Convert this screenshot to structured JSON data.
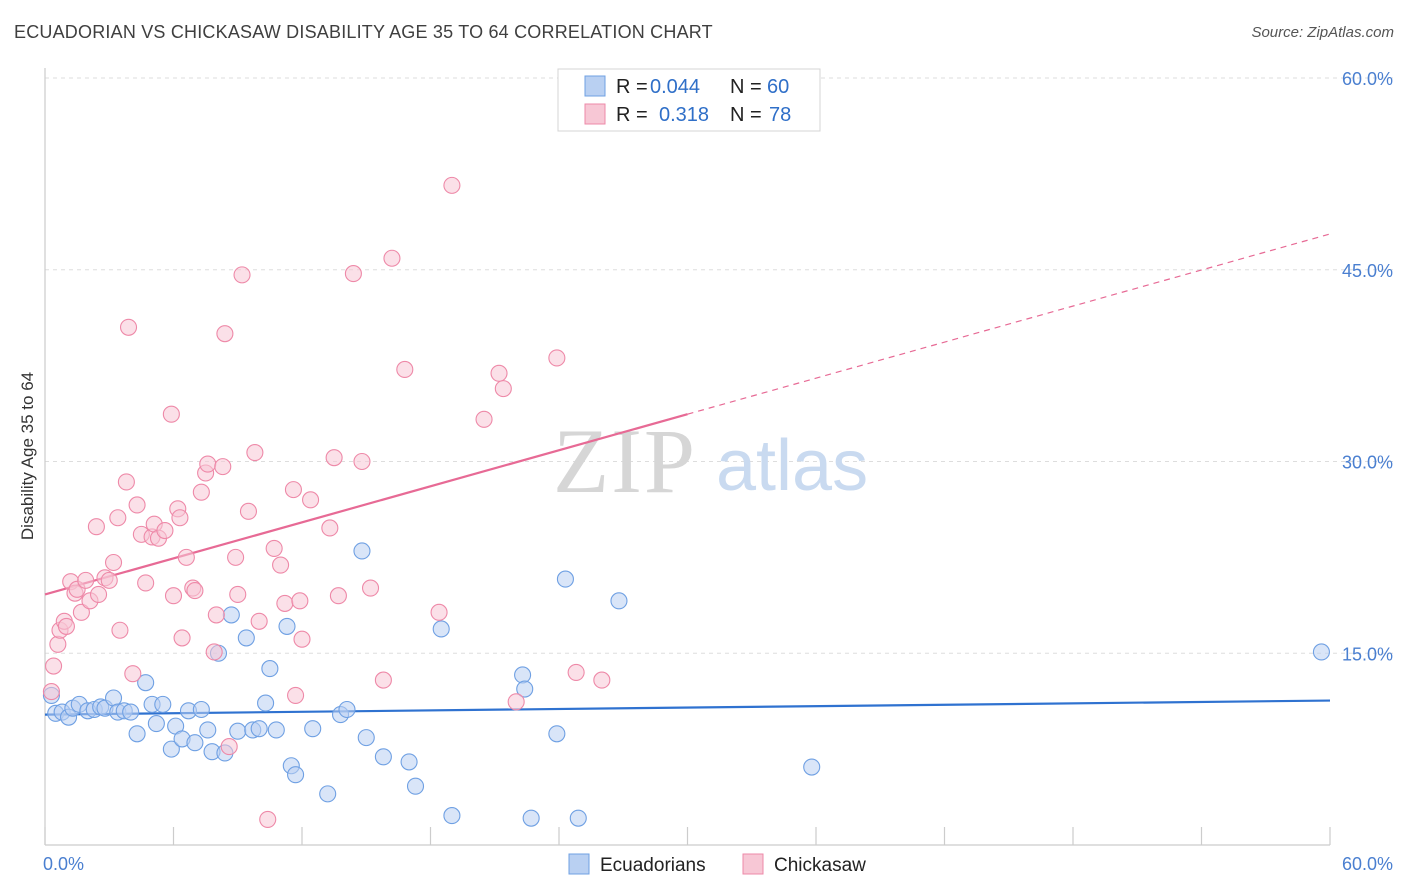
{
  "title": "ECUADORIAN VS CHICKASAW DISABILITY AGE 35 TO 64 CORRELATION CHART",
  "source": "Source: ZipAtlas.com",
  "watermark": {
    "zip": "ZIP",
    "atlas": "atlas"
  },
  "legend": {
    "r_label": "R =",
    "n_label": "N =",
    "rows": [
      {
        "r": "0.044",
        "n": "60"
      },
      {
        "r": "0.318",
        "n": "78"
      }
    ]
  },
  "chart_data": {
    "type": "scatter",
    "title": "ECUADORIAN VS CHICKASAW DISABILITY AGE 35 TO 64 CORRELATION CHART",
    "xlabel": "",
    "ylabel": "Disability Age 35 to 64",
    "xlim": [
      0,
      60
    ],
    "ylim": [
      0,
      60
    ],
    "x_tick_labels": [
      "0.0%",
      "60.0%"
    ],
    "y_ticks": [
      15,
      30,
      45,
      60
    ],
    "y_tick_labels": [
      "15.0%",
      "30.0%",
      "45.0%",
      "60.0%"
    ],
    "grid": true,
    "colors": {
      "ecuadorians": "#6fa0e3",
      "ecuadorians_fill": "#b9d0f2",
      "ecuadorians_line": "#2f72d0",
      "chickasaw": "#ee89a8",
      "chickasaw_fill": "#f7c7d5",
      "chickasaw_line": "#e76a95",
      "tick_text": "#4a7fd0",
      "grid": "#dddddd"
    },
    "series": [
      {
        "name": "Ecuadorians",
        "r": 0.044,
        "n": 60,
        "trend": {
          "x0": 0,
          "y0": 10.2,
          "x1": 60,
          "y1": 11.3,
          "dash_from": null
        },
        "points": [
          [
            0.3,
            11.7
          ],
          [
            0.5,
            10.3
          ],
          [
            0.8,
            10.4
          ],
          [
            1.1,
            10.0
          ],
          [
            1.3,
            10.7
          ],
          [
            1.6,
            11.0
          ],
          [
            2.0,
            10.5
          ],
          [
            2.3,
            10.6
          ],
          [
            2.6,
            10.8
          ],
          [
            2.8,
            10.7
          ],
          [
            3.2,
            11.5
          ],
          [
            3.4,
            10.4
          ],
          [
            3.7,
            10.5
          ],
          [
            4.0,
            10.4
          ],
          [
            4.3,
            8.7
          ],
          [
            4.7,
            12.7
          ],
          [
            5.0,
            11.0
          ],
          [
            5.2,
            9.5
          ],
          [
            5.5,
            11.0
          ],
          [
            5.9,
            7.5
          ],
          [
            6.1,
            9.3
          ],
          [
            6.4,
            8.3
          ],
          [
            6.7,
            10.5
          ],
          [
            7.0,
            8.0
          ],
          [
            7.3,
            10.6
          ],
          [
            7.6,
            9.0
          ],
          [
            7.8,
            7.3
          ],
          [
            8.1,
            15.0
          ],
          [
            8.4,
            7.2
          ],
          [
            8.7,
            18.0
          ],
          [
            9.0,
            8.9
          ],
          [
            9.4,
            16.2
          ],
          [
            9.7,
            9.0
          ],
          [
            10.0,
            9.1
          ],
          [
            10.3,
            11.1
          ],
          [
            10.5,
            13.8
          ],
          [
            10.8,
            9.0
          ],
          [
            11.3,
            17.1
          ],
          [
            11.5,
            6.2
          ],
          [
            11.7,
            5.5
          ],
          [
            12.5,
            9.1
          ],
          [
            13.2,
            4.0
          ],
          [
            13.8,
            10.2
          ],
          [
            14.1,
            10.6
          ],
          [
            14.8,
            23.0
          ],
          [
            15.0,
            8.4
          ],
          [
            15.8,
            6.9
          ],
          [
            17.0,
            6.5
          ],
          [
            17.3,
            4.6
          ],
          [
            18.5,
            16.9
          ],
          [
            19.0,
            2.3
          ],
          [
            22.3,
            13.3
          ],
          [
            22.4,
            12.2
          ],
          [
            22.7,
            2.1
          ],
          [
            23.9,
            8.7
          ],
          [
            24.3,
            20.8
          ],
          [
            24.9,
            2.1
          ],
          [
            26.8,
            19.1
          ],
          [
            35.8,
            6.1
          ],
          [
            59.6,
            15.1
          ]
        ]
      },
      {
        "name": "Chickasaw",
        "r": 0.318,
        "n": 78,
        "trend": {
          "x0": 0,
          "y0": 19.6,
          "x1": 60,
          "y1": 47.8,
          "dash_from": 30
        },
        "points": [
          [
            0.3,
            12.0
          ],
          [
            0.4,
            14.0
          ],
          [
            0.6,
            15.7
          ],
          [
            0.7,
            16.8
          ],
          [
            0.9,
            17.5
          ],
          [
            1.0,
            17.1
          ],
          [
            1.2,
            20.6
          ],
          [
            1.4,
            19.7
          ],
          [
            1.5,
            20.0
          ],
          [
            1.7,
            18.2
          ],
          [
            1.9,
            20.7
          ],
          [
            2.1,
            19.1
          ],
          [
            2.4,
            24.9
          ],
          [
            2.5,
            19.6
          ],
          [
            2.8,
            20.9
          ],
          [
            3.0,
            20.7
          ],
          [
            3.2,
            22.1
          ],
          [
            3.4,
            25.6
          ],
          [
            3.5,
            16.8
          ],
          [
            3.9,
            40.5
          ],
          [
            3.8,
            28.4
          ],
          [
            4.1,
            13.4
          ],
          [
            4.3,
            26.6
          ],
          [
            4.5,
            24.3
          ],
          [
            4.7,
            20.5
          ],
          [
            5.0,
            24.1
          ],
          [
            5.1,
            25.1
          ],
          [
            5.3,
            24.0
          ],
          [
            5.6,
            24.6
          ],
          [
            5.9,
            33.7
          ],
          [
            6.0,
            19.5
          ],
          [
            6.2,
            26.3
          ],
          [
            6.3,
            25.6
          ],
          [
            6.4,
            16.2
          ],
          [
            6.6,
            22.5
          ],
          [
            6.9,
            20.1
          ],
          [
            7.0,
            19.9
          ],
          [
            7.3,
            27.6
          ],
          [
            7.5,
            29.1
          ],
          [
            7.6,
            29.8
          ],
          [
            7.9,
            15.1
          ],
          [
            8.0,
            18.0
          ],
          [
            8.3,
            29.6
          ],
          [
            8.4,
            40.0
          ],
          [
            8.6,
            7.7
          ],
          [
            8.9,
            22.5
          ],
          [
            9.0,
            19.6
          ],
          [
            9.2,
            44.6
          ],
          [
            9.5,
            26.1
          ],
          [
            9.8,
            30.7
          ],
          [
            10.0,
            17.5
          ],
          [
            10.4,
            2.0
          ],
          [
            10.7,
            23.2
          ],
          [
            11.0,
            21.9
          ],
          [
            11.2,
            18.9
          ],
          [
            11.6,
            27.8
          ],
          [
            11.7,
            11.7
          ],
          [
            11.9,
            19.1
          ],
          [
            12.0,
            16.1
          ],
          [
            12.4,
            27.0
          ],
          [
            13.3,
            24.8
          ],
          [
            13.5,
            30.3
          ],
          [
            13.7,
            19.5
          ],
          [
            14.4,
            44.7
          ],
          [
            14.8,
            30.0
          ],
          [
            15.2,
            20.1
          ],
          [
            15.8,
            12.9
          ],
          [
            16.2,
            45.9
          ],
          [
            16.8,
            37.2
          ],
          [
            18.4,
            18.2
          ],
          [
            19.0,
            51.6
          ],
          [
            20.5,
            33.3
          ],
          [
            21.2,
            36.9
          ],
          [
            21.4,
            35.7
          ],
          [
            22.0,
            11.2
          ],
          [
            23.9,
            38.1
          ],
          [
            24.8,
            13.5
          ],
          [
            26.0,
            12.9
          ]
        ]
      }
    ],
    "legend_entries": [
      "Ecuadorians",
      "Chickasaw"
    ]
  }
}
